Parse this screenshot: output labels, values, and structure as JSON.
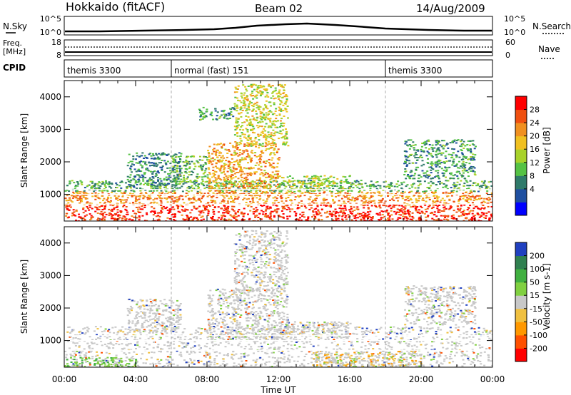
{
  "header": {
    "title": "Hokkaido (fitACF)",
    "beam": "Beam 02",
    "date": "14/Aug/2009"
  },
  "nsky_panel": {
    "left_label": "N.Sky",
    "right_label": "N.Search",
    "left_ticks": [
      "10^5",
      "10^0"
    ],
    "right_ticks": [
      "10^5",
      "10^0"
    ]
  },
  "freq_panel": {
    "label_line1": "Freq.",
    "label_line2": "[MHz]",
    "left_ticks": [
      "18",
      "8"
    ],
    "right_ticks": [
      "60",
      "0"
    ],
    "right_label": "Nave"
  },
  "cpid_panel": {
    "label": "CPID",
    "segments": [
      {
        "name": "themis 3300",
        "start_hour": 0,
        "end_hour": 6
      },
      {
        "name": "normal (fast) 151",
        "start_hour": 6,
        "end_hour": 18
      },
      {
        "name": "themis 3300",
        "start_hour": 18,
        "end_hour": 24
      }
    ]
  },
  "chart_data": [
    {
      "type": "heatmap",
      "panel": "power",
      "ylabel": "Slant Range [km]",
      "xlabel": "Time UT",
      "xlim": [
        0,
        24
      ],
      "ylim": [
        180,
        4500
      ],
      "y_ticks": [
        1000,
        2000,
        3000,
        4000
      ],
      "x_tick_labels": [
        "00:00",
        "04:00",
        "08:00",
        "12:00",
        "16:00",
        "20:00",
        "00:00"
      ],
      "colorbar": {
        "label": "Power [dB]",
        "ticks": [
          "28",
          "24",
          "20",
          "16",
          "12",
          "8",
          "4"
        ],
        "colors": [
          "#0000ff",
          "#1f4fa0",
          "#2f7a6a",
          "#55c244",
          "#a8d22a",
          "#f0c020",
          "#f09020",
          "#f05010",
          "#ff0000"
        ]
      },
      "regions": [
        {
          "t0": 0.0,
          "t1": 24.0,
          "r0": 180,
          "r1": 700,
          "intensity": 0.95
        },
        {
          "t0": 0.0,
          "t1": 24.0,
          "r0": 700,
          "r1": 1100,
          "intensity": 0.75
        },
        {
          "t0": 0.0,
          "t1": 24.0,
          "r0": 1100,
          "r1": 1450,
          "intensity": 0.35
        },
        {
          "t0": 3.5,
          "t1": 6.5,
          "r0": 1300,
          "r1": 2300,
          "intensity": 0.25
        },
        {
          "t0": 6.0,
          "t1": 8.0,
          "r0": 1400,
          "r1": 2200,
          "intensity": 0.4
        },
        {
          "t0": 8.0,
          "t1": 12.0,
          "r0": 1000,
          "r1": 2600,
          "intensity": 0.7
        },
        {
          "t0": 9.5,
          "t1": 12.5,
          "r0": 2500,
          "r1": 4400,
          "intensity": 0.55
        },
        {
          "t0": 7.5,
          "t1": 9.5,
          "r0": 3300,
          "r1": 3700,
          "intensity": 0.3
        },
        {
          "t0": 12.0,
          "t1": 16.0,
          "r0": 1100,
          "r1": 1600,
          "intensity": 0.5
        },
        {
          "t0": 19.0,
          "t1": 23.0,
          "r0": 1500,
          "r1": 2700,
          "intensity": 0.3
        }
      ]
    },
    {
      "type": "heatmap",
      "panel": "velocity",
      "ylabel": "Slant Range [km]",
      "xlabel": "Time UT",
      "xlim": [
        0,
        24
      ],
      "ylim": [
        180,
        4500
      ],
      "y_ticks": [
        1000,
        2000,
        3000,
        4000
      ],
      "x_tick_labels": [
        "00:00",
        "04:00",
        "08:00",
        "12:00",
        "16:00",
        "20:00",
        "00:00"
      ],
      "colorbar": {
        "label": "Velocity [m s-1]",
        "ticks": [
          "200",
          "100",
          "50",
          "15",
          "-15",
          "-50",
          "-100",
          "-200"
        ],
        "colors": [
          "#ff0000",
          "#ff5000",
          "#ff9800",
          "#f0c040",
          "#c8c8c8",
          "#80d040",
          "#40b040",
          "#308050",
          "#2040c0"
        ]
      },
      "regions": [
        {
          "t0": 0.0,
          "t1": 24.0,
          "r0": 180,
          "r1": 1450,
          "intensity": 0.5
        },
        {
          "t0": 3.5,
          "t1": 6.5,
          "r0": 1300,
          "r1": 2300,
          "intensity": 0.5
        },
        {
          "t0": 8.0,
          "t1": 12.5,
          "r0": 1000,
          "r1": 2600,
          "intensity": 0.5
        },
        {
          "t0": 9.5,
          "t1": 12.5,
          "r0": 2500,
          "r1": 4400,
          "intensity": 0.5
        },
        {
          "t0": 12.0,
          "t1": 16.0,
          "r0": 1100,
          "r1": 1600,
          "intensity": 0.5
        },
        {
          "t0": 19.0,
          "t1": 23.0,
          "r0": 1500,
          "r1": 2700,
          "intensity": 0.5
        },
        {
          "t0": 0.0,
          "t1": 4.0,
          "r0": 180,
          "r1": 500,
          "intensity": 0.3
        },
        {
          "t0": 14.0,
          "t1": 20.0,
          "r0": 180,
          "r1": 700,
          "intensity": 0.65
        }
      ]
    }
  ]
}
